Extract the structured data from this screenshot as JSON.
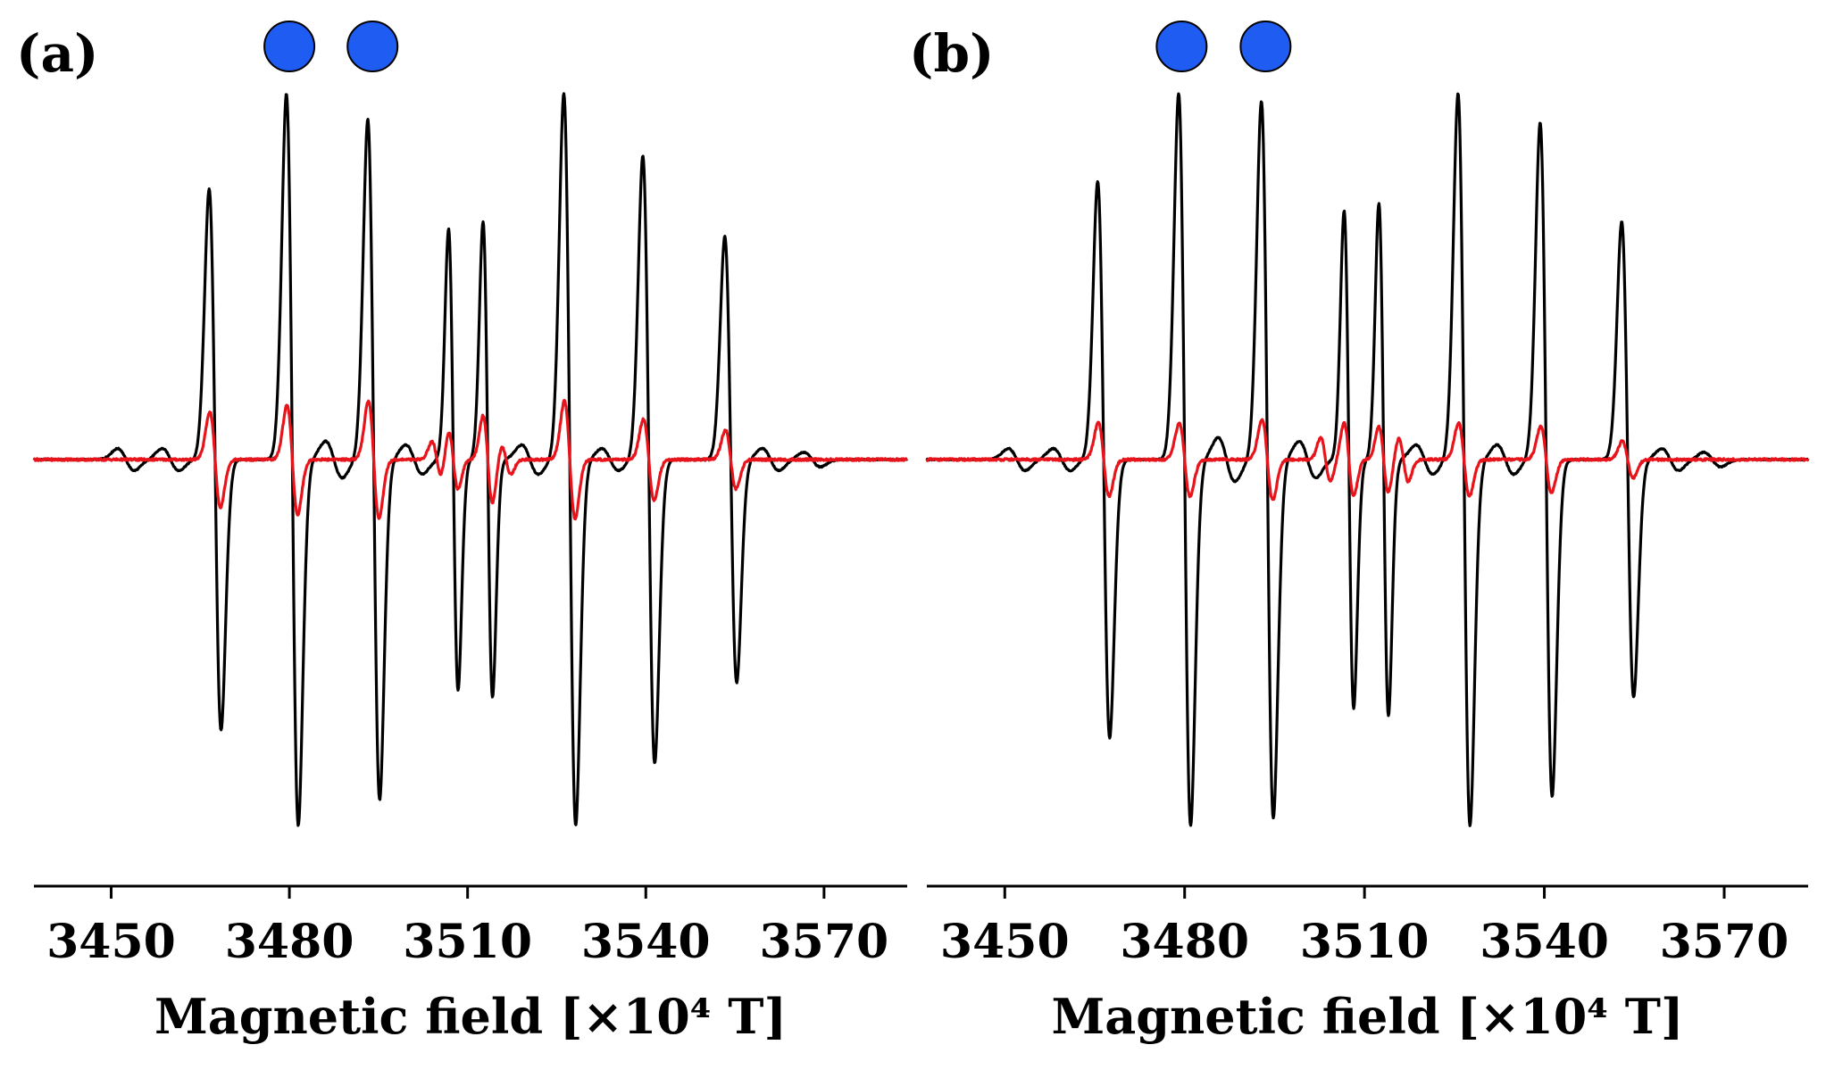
{
  "colors": {
    "series_black": "#000000",
    "series_red": "#e8141c",
    "marker_fill": "#1f5cf2",
    "marker_stroke": "#000000",
    "axis": "#000000"
  },
  "chart_data": [
    {
      "type": "line",
      "panel_label": "(a)",
      "xlabel": "Magnetic field [×10⁴ T]",
      "xlim": [
        3437,
        3584
      ],
      "xticks": [
        3450,
        3480,
        3510,
        3540,
        3570
      ],
      "ylim": [
        -1.0,
        1.0
      ],
      "grid": false,
      "markers": {
        "shape": "circle",
        "x": [
          3480,
          3494
        ]
      },
      "series": [
        {
          "name": "black",
          "color": "#000000",
          "lines": [
            {
              "center": 3467.5,
              "amp": 0.74,
              "width": 1.0
            },
            {
              "center": 3480.5,
              "amp": 1.0,
              "width": 1.0
            },
            {
              "center": 3494.2,
              "amp": 0.93,
              "width": 1.0
            },
            {
              "center": 3507.6,
              "amp": 0.63,
              "width": 0.8
            },
            {
              "center": 3513.4,
              "amp": 0.65,
              "width": 0.8
            },
            {
              "center": 3527.2,
              "amp": 1.0,
              "width": 1.0
            },
            {
              "center": 3540.5,
              "amp": 0.83,
              "width": 1.0
            },
            {
              "center": 3554.3,
              "amp": 0.61,
              "width": 1.0
            }
          ],
          "wiggles": [
            {
              "center": 3452.5,
              "amp": 0.03,
              "width": 1.4
            },
            {
              "center": 3460.0,
              "amp": 0.03,
              "width": 1.4
            },
            {
              "center": 3487.5,
              "amp": 0.05,
              "width": 1.4
            },
            {
              "center": 3501.0,
              "amp": 0.04,
              "width": 1.4
            },
            {
              "center": 3520.5,
              "amp": 0.04,
              "width": 1.4
            },
            {
              "center": 3534.0,
              "amp": 0.03,
              "width": 1.4
            },
            {
              "center": 3561.0,
              "amp": 0.03,
              "width": 1.4
            },
            {
              "center": 3568.0,
              "amp": 0.02,
              "width": 1.4
            }
          ]
        },
        {
          "name": "red",
          "color": "#e8141c",
          "lines": [
            {
              "center": 3467.5,
              "amp": 0.13,
              "width": 0.9
            },
            {
              "center": 3480.5,
              "amp": 0.15,
              "width": 0.9
            },
            {
              "center": 3494.2,
              "amp": 0.16,
              "width": 0.9
            },
            {
              "center": 3504.8,
              "amp": 0.05,
              "width": 0.8
            },
            {
              "center": 3507.6,
              "amp": 0.08,
              "width": 0.8
            },
            {
              "center": 3513.4,
              "amp": 0.12,
              "width": 0.8
            },
            {
              "center": 3516.5,
              "amp": 0.04,
              "width": 0.8
            },
            {
              "center": 3527.2,
              "amp": 0.16,
              "width": 0.9
            },
            {
              "center": 3540.5,
              "amp": 0.11,
              "width": 0.9
            },
            {
              "center": 3554.3,
              "amp": 0.08,
              "width": 0.9
            }
          ],
          "wiggles": []
        }
      ]
    },
    {
      "type": "line",
      "panel_label": "(b)",
      "xlabel": "Magnetic field [×10⁴ T]",
      "xlim": [
        3437,
        3584
      ],
      "xticks": [
        3450,
        3480,
        3510,
        3540,
        3570
      ],
      "ylim": [
        -1.0,
        1.0
      ],
      "grid": false,
      "markers": {
        "shape": "circle",
        "x": [
          3479.5,
          3493.5
        ]
      },
      "series": [
        {
          "name": "black",
          "color": "#000000",
          "lines": [
            {
              "center": 3466.5,
              "amp": 0.76,
              "width": 1.0
            },
            {
              "center": 3480.0,
              "amp": 1.0,
              "width": 1.0
            },
            {
              "center": 3493.8,
              "amp": 0.98,
              "width": 1.0
            },
            {
              "center": 3507.4,
              "amp": 0.68,
              "width": 0.8
            },
            {
              "center": 3513.2,
              "amp": 0.7,
              "width": 0.8
            },
            {
              "center": 3526.6,
              "amp": 1.0,
              "width": 1.0
            },
            {
              "center": 3540.3,
              "amp": 0.92,
              "width": 1.0
            },
            {
              "center": 3553.9,
              "amp": 0.65,
              "width": 1.0
            }
          ],
          "wiggles": [
            {
              "center": 3452.0,
              "amp": 0.03,
              "width": 1.4
            },
            {
              "center": 3459.5,
              "amp": 0.03,
              "width": 1.4
            },
            {
              "center": 3487.0,
              "amp": 0.06,
              "width": 1.4
            },
            {
              "center": 3500.5,
              "amp": 0.05,
              "width": 1.4
            },
            {
              "center": 3520.0,
              "amp": 0.04,
              "width": 1.4
            },
            {
              "center": 3533.5,
              "amp": 0.04,
              "width": 1.4
            },
            {
              "center": 3561.0,
              "amp": 0.03,
              "width": 1.4
            },
            {
              "center": 3568.0,
              "amp": 0.02,
              "width": 1.4
            }
          ]
        },
        {
          "name": "red",
          "color": "#e8141c",
          "lines": [
            {
              "center": 3466.5,
              "amp": 0.1,
              "width": 0.9
            },
            {
              "center": 3480.0,
              "amp": 0.1,
              "width": 0.9
            },
            {
              "center": 3493.8,
              "amp": 0.11,
              "width": 0.9
            },
            {
              "center": 3503.5,
              "amp": 0.06,
              "width": 0.8
            },
            {
              "center": 3507.4,
              "amp": 0.1,
              "width": 0.8
            },
            {
              "center": 3513.2,
              "amp": 0.09,
              "width": 0.8
            },
            {
              "center": 3516.5,
              "amp": 0.06,
              "width": 0.8
            },
            {
              "center": 3526.6,
              "amp": 0.1,
              "width": 0.9
            },
            {
              "center": 3540.3,
              "amp": 0.09,
              "width": 0.9
            },
            {
              "center": 3553.9,
              "amp": 0.05,
              "width": 0.9
            }
          ],
          "wiggles": []
        }
      ]
    }
  ]
}
